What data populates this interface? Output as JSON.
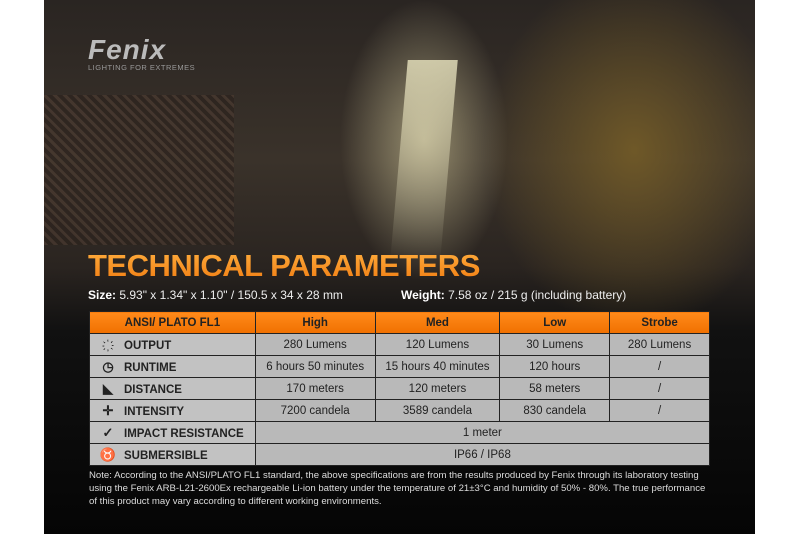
{
  "brand": {
    "name": "Fenix",
    "tagline": "LIGHTING FOR EXTREMES"
  },
  "title": "TECHNICAL PARAMETERS",
  "size": {
    "label": "Size:",
    "value": "5.93\" x 1.34\" x 1.10\" / 150.5 x 34 x 28 mm"
  },
  "weight": {
    "label": "Weight:",
    "value": "7.58 oz / 215 g (including battery)"
  },
  "table": {
    "headers": [
      "ANSI/ PLATO  FL1",
      "High",
      "Med",
      "Low",
      "Strobe"
    ],
    "rows": [
      {
        "icon": "output-icon",
        "label": "OUTPUT",
        "values": [
          "280 Lumens",
          "120 Lumens",
          "30 Lumens",
          "280 Lumens"
        ]
      },
      {
        "icon": "clock-icon",
        "label": "RUNTIME",
        "values": [
          "6 hours 50 minutes",
          "15 hours 40 minutes",
          "120 hours",
          "/"
        ]
      },
      {
        "icon": "distance-icon",
        "label": "DISTANCE",
        "values": [
          "170 meters",
          "120 meters",
          "58 meters",
          "/"
        ]
      },
      {
        "icon": "intensity-icon",
        "label": "INTENSITY",
        "values": [
          "7200 candela",
          "3589 candela",
          "830 candela",
          "/"
        ]
      },
      {
        "icon": "impact-icon",
        "label": "IMPACT RESISTANCE",
        "values": [
          "1 meter"
        ]
      },
      {
        "icon": "submersible-icon",
        "label": "SUBMERSIBLE",
        "values": [
          "IP66 / IP68"
        ]
      }
    ]
  },
  "note": "Note: According to the ANSI/PLATO FL1 standard, the above specifications are from the results produced by Fenix through its laboratory testing using the Fenix ARB-L21-2600Ex rechargeable Li-ion battery under the temperature of 21±3°C and humidity of 50% - 80%. The true performance of this product may vary according to different working environments.",
  "colors": {
    "accent": "#f57f0f",
    "cell": "#b9b9b9",
    "background": "#0a0a0a"
  }
}
